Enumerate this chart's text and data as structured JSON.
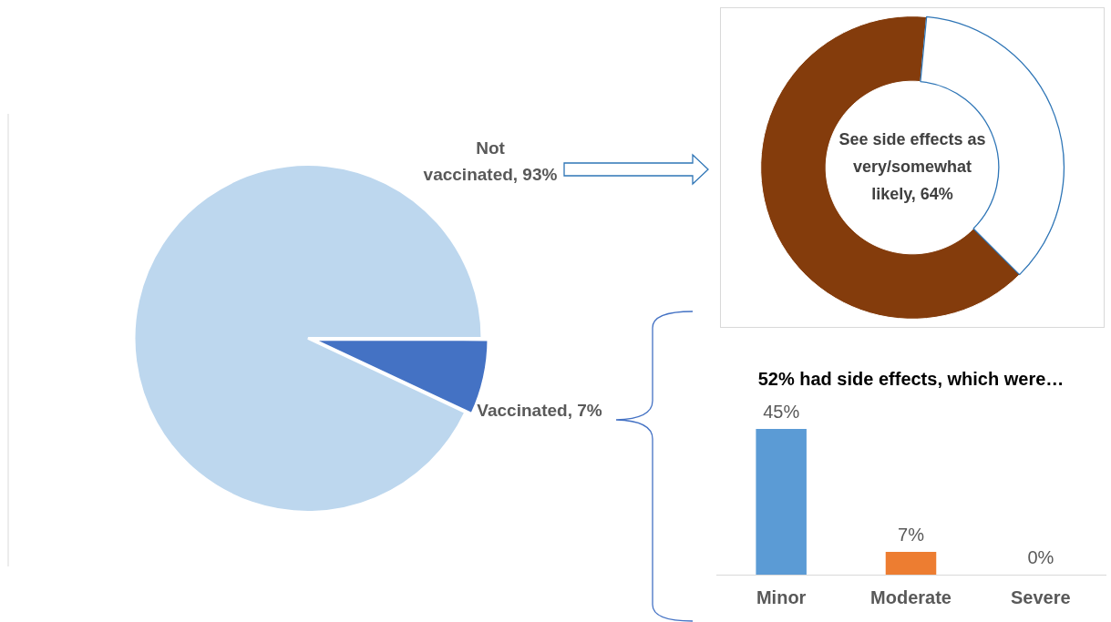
{
  "chart_data": [
    {
      "type": "pie",
      "categories": [
        "Not vaccinated",
        "Vaccinated"
      ],
      "values": [
        93,
        7
      ],
      "colors": [
        "#bdd7ee",
        "#4472c4"
      ],
      "value_labels": [
        "93%",
        "7%"
      ],
      "legend": false
    },
    {
      "type": "donut",
      "categories": [
        "See side effects as very/somewhat likely",
        null
      ],
      "values": [
        64,
        36
      ],
      "colors": [
        "#843c0c",
        "#ffffff"
      ],
      "value_labels": [
        "64%",
        null
      ],
      "legend": false
    },
    {
      "type": "bar",
      "title": "52% had side effects, which were…",
      "categories": [
        "Minor",
        "Moderate",
        "Severe"
      ],
      "values": [
        45,
        7,
        0
      ],
      "colors": [
        "#5b9bd5",
        "#ed7d31",
        "#a5a5a5"
      ],
      "value_labels": [
        "45%",
        "7%",
        "0%"
      ],
      "tick_labels": "x",
      "grid": false,
      "legend": false
    }
  ]
}
